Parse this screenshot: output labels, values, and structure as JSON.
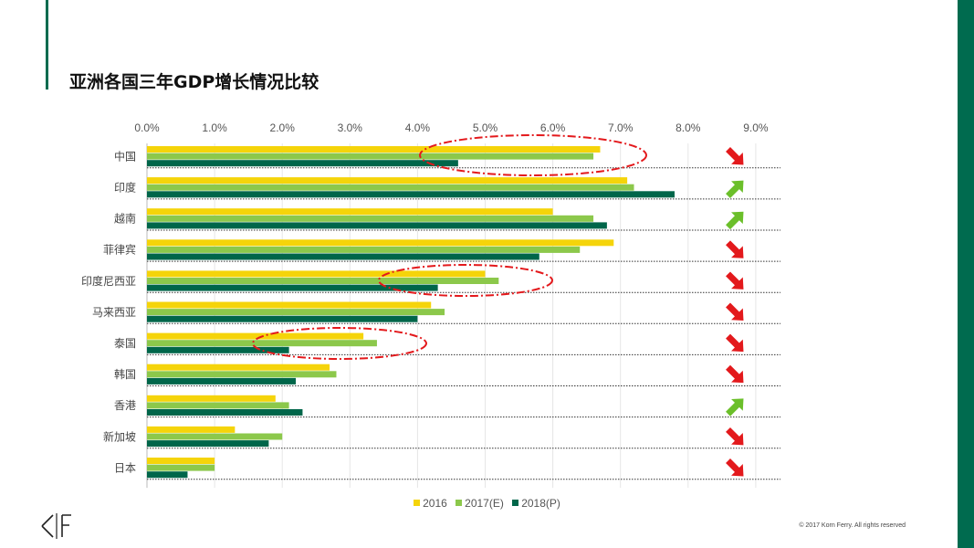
{
  "page": {
    "title": "亚洲各国三年GDP增长情况比较",
    "copyright": "© 2017 Korn Ferry. All rights reserved",
    "logo_alt": "KF"
  },
  "colors": {
    "brand_green": "#006b4f",
    "series_2016": "#f5d40a",
    "series_2017": "#8cc84b",
    "series_2018": "#00664a",
    "arrow_up": "#6bbf2a",
    "arrow_down": "#e3191c",
    "ellipse": "#e3191c"
  },
  "chart_data": {
    "type": "bar",
    "orientation": "horizontal",
    "categories": [
      "中国",
      "印度",
      "越南",
      "菲律宾",
      "印度尼西亚",
      "马来西亚",
      "泰国",
      "韩国",
      "香港",
      "新加坡",
      "日本"
    ],
    "series": [
      {
        "name": "2016",
        "values": [
          6.7,
          7.1,
          6.0,
          6.9,
          5.0,
          4.2,
          3.2,
          2.7,
          1.9,
          1.3,
          1.0
        ]
      },
      {
        "name": "2017(E)",
        "values": [
          6.6,
          7.2,
          6.6,
          6.4,
          5.2,
          4.4,
          3.4,
          2.8,
          2.1,
          2.0,
          1.0
        ]
      },
      {
        "name": "2018(P)",
        "values": [
          4.6,
          7.8,
          6.8,
          5.8,
          4.3,
          4.0,
          2.1,
          2.2,
          2.3,
          1.8,
          0.6
        ]
      }
    ],
    "xlim": [
      0,
      0.09
    ],
    "xticks": [
      "0.0%",
      "1.0%",
      "2.0%",
      "3.0%",
      "4.0%",
      "5.0%",
      "6.0%",
      "7.0%",
      "8.0%",
      "9.0%"
    ],
    "axis_position": "top",
    "legend": "bottom-center",
    "trend_arrows": [
      "down",
      "up",
      "up",
      "down",
      "down",
      "down",
      "down",
      "down",
      "up",
      "down",
      "down"
    ],
    "highlighted_categories": [
      "中国",
      "印度尼西亚",
      "泰国"
    ]
  }
}
